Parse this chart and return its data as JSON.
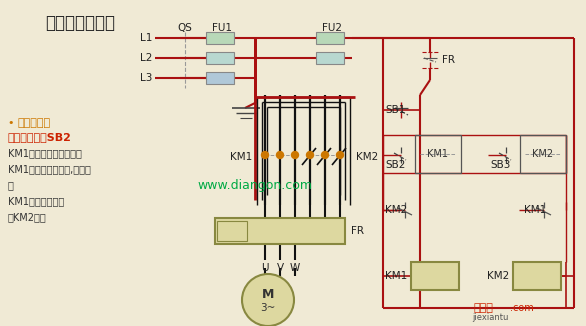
{
  "bg_color": "#f0ead5",
  "title": "三相电机正反转",
  "red": "#aa1111",
  "black": "#111111",
  "gray": "#999999",
  "orange": "#cc7700",
  "green_wm": "#00aa44",
  "red_wm": "#cc2200",
  "comp_fill": "#ddd8a0",
  "comp_edge": "#888840",
  "ann_orange": "#cc7700",
  "ann_red": "#cc2200",
  "ann_black": "#333333",
  "ann_lines": [
    "电机正转：",
    "按下启动按钮SB2",
    "KM1自锁触头闭合，自锁",
    "KM1动合主触头闭合,电机正",
    "转",
    "KM1联锁触头断开",
    "对KM2联锁"
  ]
}
